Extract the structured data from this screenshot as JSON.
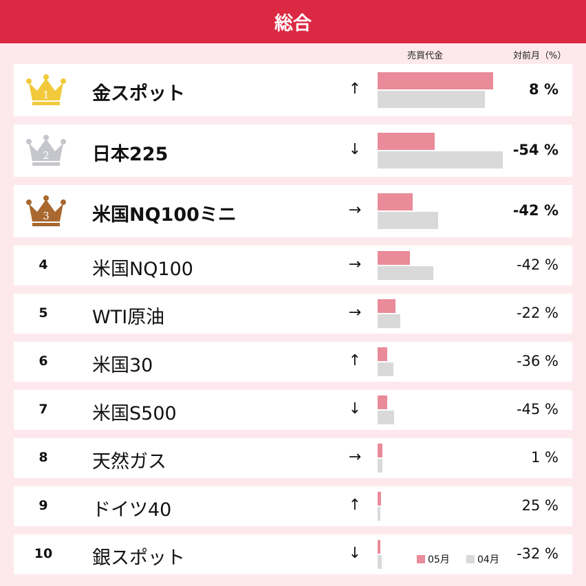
{
  "header": {
    "title": "総合"
  },
  "columns": {
    "value": "売買代金",
    "change": "対前月（%）"
  },
  "legend": [
    {
      "name": "05月",
      "color": "#e98b99"
    },
    {
      "name": "04月",
      "color": "#d9d9d9"
    }
  ],
  "rows": [
    {
      "rank": 1,
      "name": "金スポット",
      "trend": "↑",
      "current": 168,
      "previous": 156,
      "change": "8 %"
    },
    {
      "rank": 2,
      "name": "日本225",
      "trend": "↓",
      "current": 83,
      "previous": 182,
      "change": "-54 %"
    },
    {
      "rank": 3,
      "name": "米国NQ100ミニ",
      "trend": "→",
      "current": 51,
      "previous": 88,
      "change": "-42 %"
    },
    {
      "rank": 4,
      "name": "米国NQ100",
      "trend": "→",
      "current": 47,
      "previous": 81,
      "change": "-42 %"
    },
    {
      "rank": 5,
      "name": "WTI原油",
      "trend": "→",
      "current": 26,
      "previous": 33,
      "change": "-22 %"
    },
    {
      "rank": 6,
      "name": "米国30",
      "trend": "↑",
      "current": 14,
      "previous": 23,
      "change": "-36 %"
    },
    {
      "rank": 7,
      "name": "米国S500",
      "trend": "↓",
      "current": 14,
      "previous": 24,
      "change": "-45 %"
    },
    {
      "rank": 8,
      "name": "天然ガス",
      "trend": "→",
      "current": 7,
      "previous": 7,
      "change": "1 %"
    },
    {
      "rank": 9,
      "name": "ドイツ40",
      "trend": "↑",
      "current": 5,
      "previous": 4,
      "change": "25 %"
    },
    {
      "rank": 10,
      "name": "銀スポット",
      "trend": "↓",
      "current": 4,
      "previous": 6,
      "change": "-32 %"
    }
  ]
}
